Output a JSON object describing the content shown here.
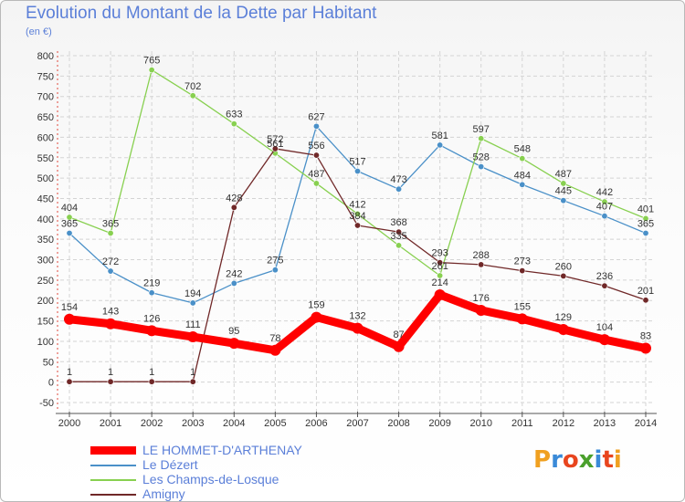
{
  "title": "Evolution du Montant de la Dette par Habitant",
  "unit": "(en €)",
  "logo": "Proxiti",
  "logo_colors": [
    "#f0a020",
    "#3a8ad8",
    "#e8451e",
    "#4aa02c",
    "#3a8ad8",
    "#e8451e",
    "#f0a020"
  ],
  "chart_data": {
    "type": "line",
    "title": "Evolution du Montant de la Dette par Habitant",
    "ylabel": "(en €)",
    "xlabel": "",
    "x": [
      2000,
      2001,
      2002,
      2003,
      2004,
      2005,
      2006,
      2007,
      2008,
      2009,
      2010,
      2011,
      2012,
      2013,
      2014
    ],
    "ylim": [
      -50,
      800
    ],
    "yticks": [
      -50,
      0,
      50,
      100,
      150,
      200,
      250,
      300,
      350,
      400,
      450,
      500,
      550,
      600,
      650,
      700,
      750,
      800
    ],
    "grid": true,
    "legend_position": "bottom-left",
    "series": [
      {
        "name": "LE HOMMET-D'ARTHENAY",
        "color": "#ff0000",
        "values": [
          154,
          143,
          126,
          111,
          95,
          78,
          159,
          132,
          87,
          214,
          176,
          155,
          129,
          104,
          83
        ]
      },
      {
        "name": "Le Dézert",
        "color": "#4a90c8",
        "values": [
          365,
          272,
          219,
          194,
          242,
          275,
          627,
          517,
          473,
          581,
          528,
          484,
          445,
          407,
          365
        ]
      },
      {
        "name": "Les Champs-de-Losque",
        "color": "#88d050",
        "values": [
          404,
          365,
          765,
          702,
          633,
          561,
          487,
          412,
          335,
          261,
          597,
          548,
          487,
          442,
          401
        ]
      },
      {
        "name": "Amigny",
        "color": "#702828",
        "values": [
          1,
          1,
          1,
          1,
          428,
          572,
          556,
          384,
          368,
          293,
          288,
          273,
          260,
          236,
          201
        ]
      }
    ]
  }
}
